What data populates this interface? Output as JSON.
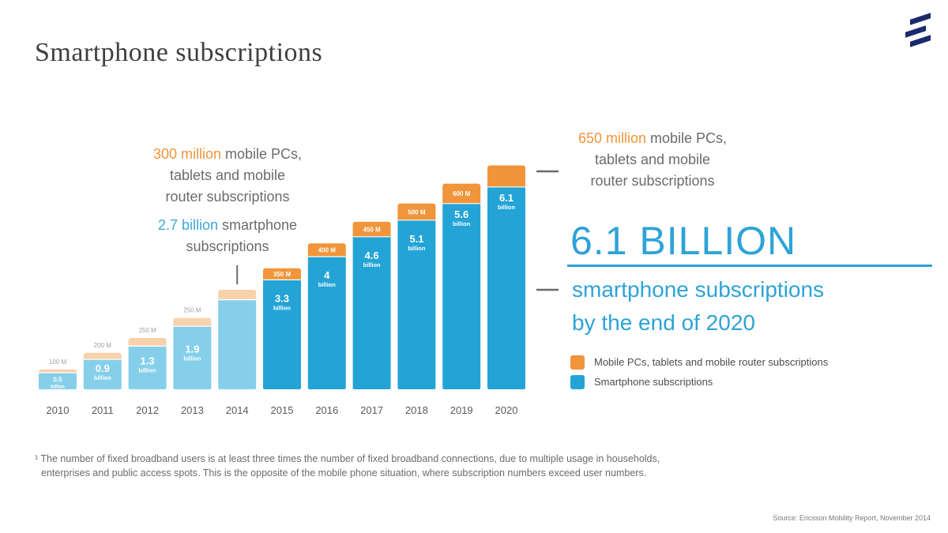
{
  "page": {
    "title": "Smartphone subscriptions",
    "logo": "ericsson-logo",
    "callout_left": {
      "line1_highlight": "300 million",
      "line1_rest": " mobile PCs,",
      "line2": "tablets and mobile",
      "line3": "router subscriptions",
      "line4_highlight": "2.7 billion",
      "line4_rest": " smartphone",
      "line5": "subscriptions"
    },
    "callout_right": {
      "line1_highlight": "650 million",
      "line1_rest": " mobile PCs,",
      "line2": "tablets and mobile",
      "line3": "router subscriptions"
    },
    "headline": {
      "number": "6.1 BILLION",
      "line1": "smartphone subscriptions",
      "line2": "by the end of 2020"
    },
    "legend": [
      {
        "label": "Mobile PCs, tablets and mobile router subscriptions",
        "color": "#f0953a"
      },
      {
        "label": "Smartphone subscriptions",
        "color": "#24a4d6"
      }
    ],
    "footnote_line1": "¹ The number of fixed broadband users is at least three times the number of fixed broadband connections, due to multiple usage in households,",
    "footnote_line2": "enterprises and public access spots. This is the opposite of the mobile phone situation, where subscription numbers exceed user numbers.",
    "source": "Source: Ericsson Mobility Report, November 2014"
  },
  "chart_data": {
    "type": "bar",
    "stacked": true,
    "categories": [
      "2010",
      "2011",
      "2012",
      "2013",
      "2014",
      "2015",
      "2016",
      "2017",
      "2018",
      "2019",
      "2020"
    ],
    "series": [
      {
        "name": "Smartphone subscriptions",
        "values": [
          0.5,
          0.9,
          1.3,
          1.9,
          2.7,
          3.3,
          4,
          4.6,
          5.1,
          5.6,
          6.1
        ],
        "labels": [
          "0.5 billion",
          "0.9 billion",
          "1.3 billion",
          "1.9 billion",
          "",
          "3.3 billion",
          "4 billion",
          "4.6 billion",
          "5.1 billion",
          "5.6 billion",
          "6.1 billion"
        ],
        "color_light": "#86cfea",
        "color": "#24a4d6"
      },
      {
        "name": "Mobile PCs, tablets and mobile router subscriptions",
        "values": [
          0.1,
          0.2,
          0.25,
          0.25,
          0.3,
          0.35,
          0.4,
          0.45,
          0.5,
          0.6,
          0.65
        ],
        "labels": [
          "100 M",
          "200 M",
          "250 M",
          "250 M",
          "",
          "350 M",
          "400 M",
          "450 M",
          "500 M",
          "600 M",
          ""
        ],
        "color_light": "#f8d2ad",
        "color": "#f0953a"
      }
    ],
    "forecast_start_index": 5,
    "ylim": [
      0,
      7
    ],
    "grid": false,
    "legend_position": "right"
  }
}
